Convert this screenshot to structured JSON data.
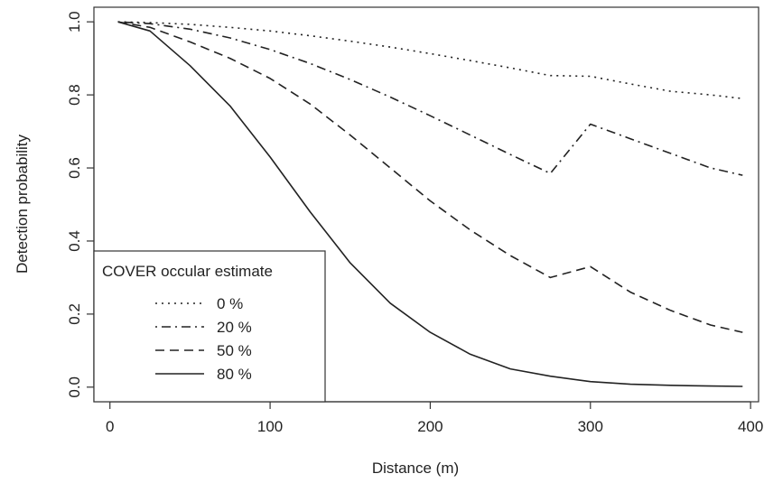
{
  "chart_data": {
    "type": "line",
    "xlabel": "Distance (m)",
    "ylabel": "Detection probability",
    "xlim": [
      -10,
      405
    ],
    "ylim": [
      -0.04,
      1.04
    ],
    "x_ticks": [
      0,
      100,
      200,
      300,
      400
    ],
    "x_tick_labels": [
      "0",
      "100",
      "200",
      "300",
      "400"
    ],
    "y_ticks": [
      0.0,
      0.2,
      0.4,
      0.6,
      0.8,
      1.0
    ],
    "y_tick_labels": [
      "0.0",
      "0.2",
      "0.4",
      "0.6",
      "0.8",
      "1.0"
    ],
    "grid": false,
    "legend": {
      "title": "COVER occular estimate",
      "placement": "bottom-left"
    },
    "x": [
      5,
      25,
      50,
      75,
      100,
      125,
      150,
      175,
      200,
      225,
      250,
      275,
      300,
      325,
      350,
      375,
      395
    ],
    "series": [
      {
        "name": "0 %",
        "dash": "dotted",
        "values": [
          1.0,
          0.998,
          0.993,
          0.985,
          0.975,
          0.962,
          0.947,
          0.931,
          0.913,
          0.894,
          0.874,
          0.853,
          0.851,
          0.83,
          0.81,
          0.8,
          0.79
        ]
      },
      {
        "name": "20 %",
        "dash": "dotdash",
        "values": [
          1.0,
          0.995,
          0.98,
          0.956,
          0.924,
          0.886,
          0.842,
          0.794,
          0.743,
          0.69,
          0.637,
          0.585,
          0.72,
          0.68,
          0.64,
          0.6,
          0.58
        ]
      },
      {
        "name": "50 %",
        "dash": "dashed",
        "values": [
          1.0,
          0.985,
          0.945,
          0.9,
          0.845,
          0.775,
          0.69,
          0.6,
          0.51,
          0.43,
          0.36,
          0.3,
          0.33,
          0.26,
          0.21,
          0.17,
          0.15
        ]
      },
      {
        "name": "80 %",
        "dash": "solid",
        "values": [
          1.0,
          0.975,
          0.88,
          0.77,
          0.63,
          0.48,
          0.34,
          0.23,
          0.15,
          0.09,
          0.05,
          0.03,
          0.015,
          0.008,
          0.005,
          0.003,
          0.002
        ]
      }
    ]
  }
}
